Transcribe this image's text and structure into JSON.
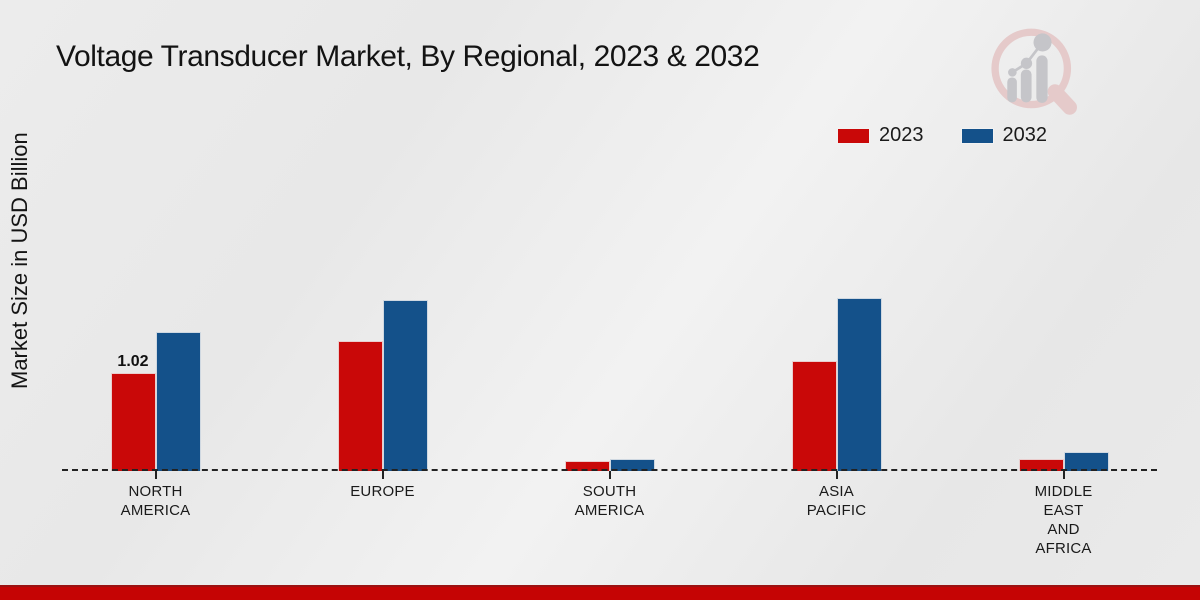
{
  "chart_data": {
    "type": "bar",
    "title": "Voltage Transducer Market, By Regional, 2023 & 2032",
    "xlabel": "",
    "ylabel": "Market Size in USD Billion",
    "ylim": [
      0,
      2.0
    ],
    "grid": false,
    "legend_position": "top-right",
    "baseline_style": "dashed",
    "categories": [
      "NORTH AMERICA",
      "EUROPE",
      "SOUTH AMERICA",
      "ASIA PACIFIC",
      "MIDDLE EAST AND AFRICA"
    ],
    "category_lines": [
      [
        "NORTH",
        "AMERICA"
      ],
      [
        "EUROPE"
      ],
      [
        "SOUTH",
        "AMERICA"
      ],
      [
        "ASIA",
        "PACIFIC"
      ],
      [
        "MIDDLE",
        "EAST",
        "AND",
        "AFRICA"
      ]
    ],
    "series": [
      {
        "name": "2023",
        "color": "#c90808",
        "values": [
          1.02,
          1.35,
          0.1,
          1.15,
          0.13
        ]
      },
      {
        "name": "2032",
        "color": "#14518a",
        "values": [
          1.45,
          1.78,
          0.13,
          1.8,
          0.2
        ]
      }
    ],
    "data_labels": [
      {
        "series_index": 0,
        "category_index": 0,
        "text": "1.02"
      }
    ]
  },
  "watermark": {
    "icon": "magnifier-bar-chart-logo",
    "ring_color": "#e5caca",
    "glyph_color": "#c5c5c9"
  },
  "footer": {
    "accent_color": "#c50404"
  }
}
